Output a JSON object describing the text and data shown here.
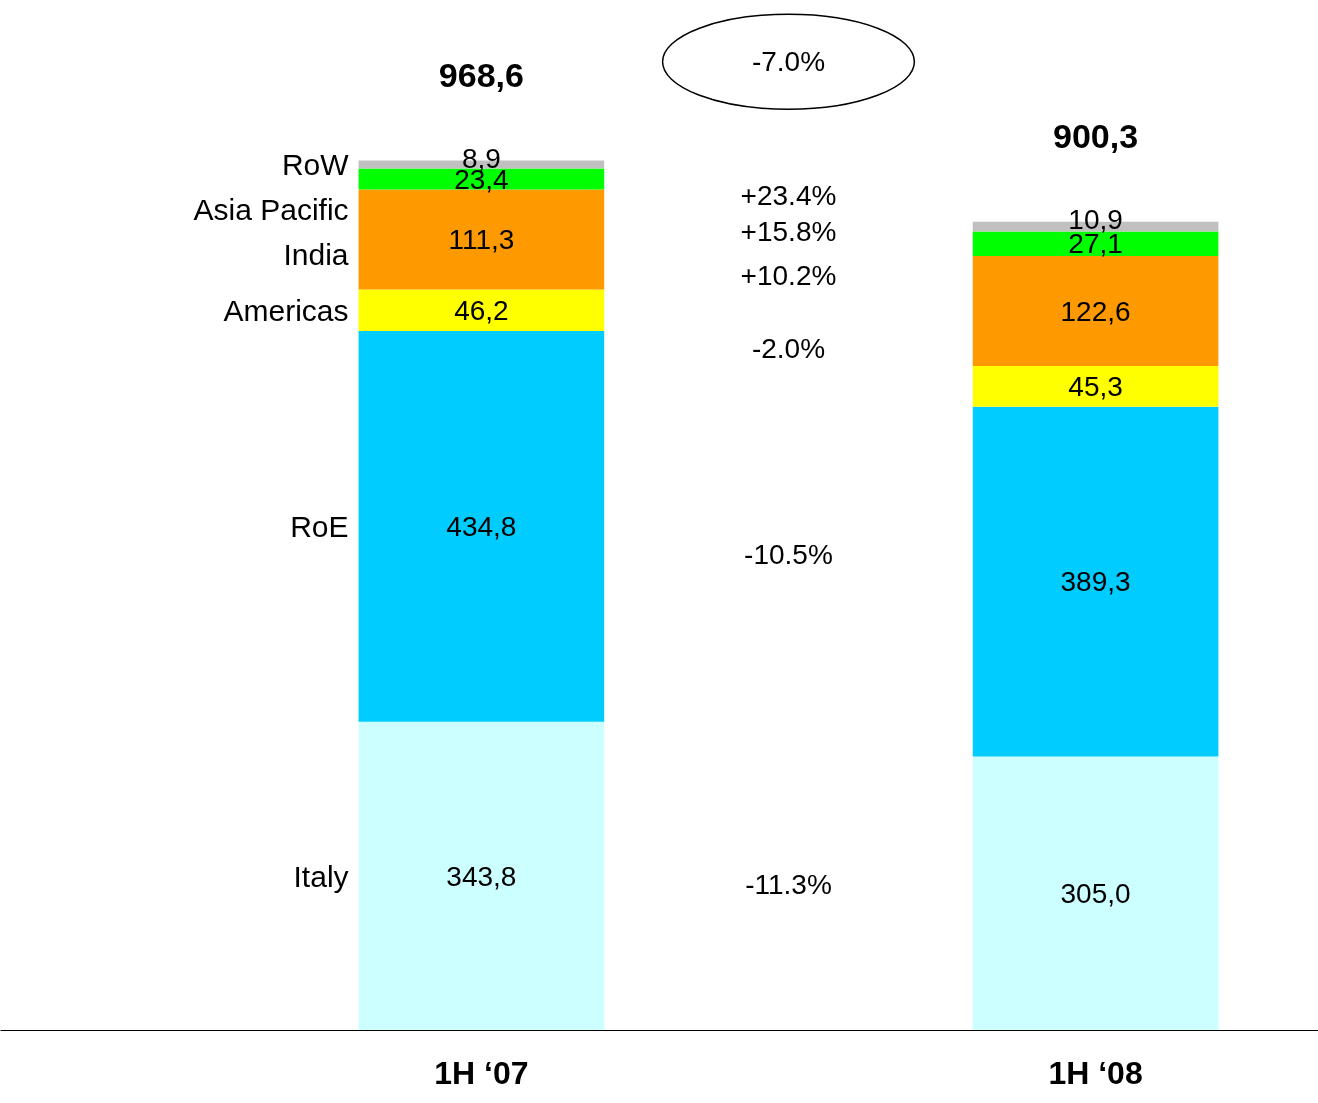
{
  "chart_data": {
    "type": "bar",
    "stacked": true,
    "legend": "left",
    "categories": [
      "1H ‘07",
      "1H ‘08"
    ],
    "series": [
      {
        "name": "Italy",
        "color": "#ccffff",
        "values": [
          343.8,
          305.0
        ],
        "value_labels": [
          "343,8",
          "305,0"
        ]
      },
      {
        "name": "RoE",
        "color": "#00ccff",
        "values": [
          434.8,
          389.3
        ],
        "value_labels": [
          "434,8",
          "389,3"
        ]
      },
      {
        "name": "Americas",
        "color": "#ffff00",
        "values": [
          46.2,
          45.3
        ],
        "value_labels": [
          "46,2",
          "45,3"
        ]
      },
      {
        "name": "India",
        "color": "#ff9900",
        "values": [
          111.3,
          122.6
        ],
        "value_labels": [
          "111,3",
          "122,6"
        ]
      },
      {
        "name": "Asia Pacific",
        "color": "#00ff00",
        "values": [
          23.4,
          27.1
        ],
        "value_labels": [
          "23,4",
          "27,1"
        ]
      },
      {
        "name": "RoW",
        "color": "#c0c0c0",
        "values": [
          8.9,
          10.9
        ],
        "value_labels": [
          "8,9",
          "10,9"
        ]
      }
    ],
    "totals": [
      "968,6",
      "900,3"
    ],
    "annotations": [
      "-7.0%",
      "-11.3%",
      "-10.5%",
      "-2.0%",
      "+10.2%",
      "+15.8%",
      "+23.4%"
    ]
  }
}
